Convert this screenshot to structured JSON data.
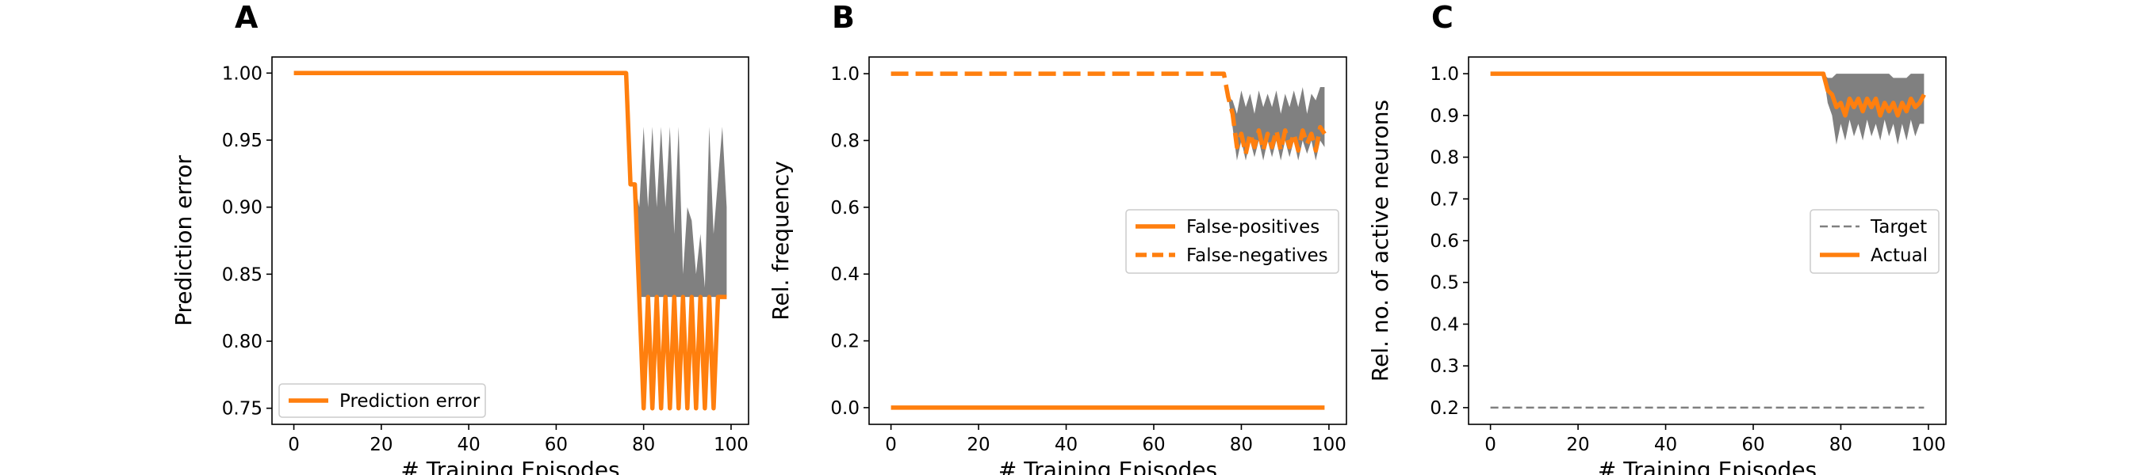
{
  "figure": {
    "panels": [
      "A",
      "B",
      "C"
    ]
  },
  "colors": {
    "series": "#ff7f0e",
    "band": "#808080",
    "target": "#808080",
    "axis": "#000000"
  },
  "chart_data": [
    {
      "panel": "A",
      "type": "line",
      "xlabel": "# Training Episodes",
      "ylabel": "Prediction error",
      "xlim": [
        -5,
        104
      ],
      "ylim": [
        0.738,
        1.012
      ],
      "xticks": [
        0,
        20,
        40,
        60,
        80,
        100
      ],
      "yticks": [
        0.75,
        0.8,
        0.85,
        0.9,
        0.95,
        1.0
      ],
      "ytick_labels": [
        "0.75",
        "0.80",
        "0.85",
        "0.90",
        "0.95",
        "1.00"
      ],
      "legend": {
        "position": "lower-left"
      },
      "series": [
        {
          "name": "Prediction error",
          "style": "solid",
          "x": [
            0,
            76,
            77,
            78,
            79,
            80,
            81,
            82,
            83,
            84,
            85,
            86,
            87,
            88,
            89,
            90,
            91,
            92,
            93,
            94,
            95,
            96,
            97,
            98,
            99
          ],
          "y": [
            1.0,
            1.0,
            0.917,
            0.917,
            0.833,
            0.75,
            0.833,
            0.75,
            0.833,
            0.75,
            0.833,
            0.75,
            0.833,
            0.75,
            0.833,
            0.75,
            0.833,
            0.75,
            0.833,
            0.75,
            0.833,
            0.75,
            0.833,
            0.833,
            0.833
          ],
          "band_upper": [
            1.0,
            1.0,
            0.917,
            0.917,
            0.9,
            0.96,
            0.9,
            0.96,
            0.9,
            0.96,
            0.9,
            0.96,
            0.88,
            0.96,
            0.85,
            0.9,
            0.89,
            0.85,
            0.88,
            0.84,
            0.96,
            0.88,
            0.92,
            0.96,
            0.9
          ],
          "band_lower": [
            1.0,
            1.0,
            0.917,
            0.917,
            0.833,
            0.833,
            0.833,
            0.833,
            0.833,
            0.833,
            0.833,
            0.833,
            0.833,
            0.833,
            0.833,
            0.833,
            0.833,
            0.833,
            0.833,
            0.833,
            0.833,
            0.833,
            0.833,
            0.833,
            0.833
          ]
        }
      ]
    },
    {
      "panel": "B",
      "type": "line",
      "xlabel": "# Training Episodes",
      "ylabel": "Rel. frequency",
      "xlim": [
        -5,
        104
      ],
      "ylim": [
        -0.05,
        1.05
      ],
      "xticks": [
        0,
        20,
        40,
        60,
        80,
        100
      ],
      "yticks": [
        0.0,
        0.2,
        0.4,
        0.6,
        0.8,
        1.0
      ],
      "ytick_labels": [
        "0.0",
        "0.2",
        "0.4",
        "0.6",
        "0.8",
        "1.0"
      ],
      "legend": {
        "position": "center-right"
      },
      "series": [
        {
          "name": "False-positives",
          "style": "solid",
          "x": [
            0,
            99
          ],
          "y": [
            0.0,
            0.0
          ]
        },
        {
          "name": "False-negatives",
          "style": "dashed",
          "x": [
            0,
            76,
            77,
            78,
            79,
            80,
            81,
            82,
            83,
            84,
            85,
            86,
            87,
            88,
            89,
            90,
            91,
            92,
            93,
            94,
            95,
            96,
            97,
            98,
            99
          ],
          "y": [
            1.0,
            1.0,
            0.93,
            0.88,
            0.78,
            0.82,
            0.76,
            0.82,
            0.78,
            0.83,
            0.77,
            0.82,
            0.78,
            0.83,
            0.77,
            0.83,
            0.78,
            0.82,
            0.77,
            0.83,
            0.79,
            0.82,
            0.77,
            0.84,
            0.82
          ],
          "band_upper": [
            1.0,
            1.0,
            0.93,
            0.92,
            0.88,
            0.95,
            0.9,
            0.94,
            0.88,
            0.95,
            0.9,
            0.94,
            0.9,
            0.95,
            0.88,
            0.94,
            0.9,
            0.95,
            0.9,
            0.96,
            0.88,
            0.94,
            0.92,
            0.96,
            0.96
          ],
          "band_lower": [
            1.0,
            1.0,
            0.93,
            0.84,
            0.74,
            0.8,
            0.74,
            0.8,
            0.75,
            0.8,
            0.74,
            0.8,
            0.75,
            0.8,
            0.74,
            0.8,
            0.75,
            0.8,
            0.74,
            0.8,
            0.76,
            0.8,
            0.74,
            0.8,
            0.78
          ]
        }
      ]
    },
    {
      "panel": "C",
      "type": "line",
      "xlabel": "# Training Episodes",
      "ylabel": "Rel. no. of active neurons",
      "xlim": [
        -5,
        104
      ],
      "ylim": [
        0.16,
        1.04
      ],
      "xticks": [
        0,
        20,
        40,
        60,
        80,
        100
      ],
      "yticks": [
        0.2,
        0.3,
        0.4,
        0.5,
        0.6,
        0.7,
        0.8,
        0.9,
        1.0
      ],
      "ytick_labels": [
        "0.2",
        "0.3",
        "0.4",
        "0.5",
        "0.6",
        "0.7",
        "0.8",
        "0.9",
        "1.0"
      ],
      "legend": {
        "position": "center-right"
      },
      "series": [
        {
          "name": "Target",
          "style": "dashed-thin",
          "x": [
            0,
            99
          ],
          "y": [
            0.2,
            0.2
          ]
        },
        {
          "name": "Actual",
          "style": "solid",
          "x": [
            0,
            76,
            77,
            78,
            79,
            80,
            81,
            82,
            83,
            84,
            85,
            86,
            87,
            88,
            89,
            90,
            91,
            92,
            93,
            94,
            95,
            96,
            97,
            98,
            99
          ],
          "y": [
            1.0,
            1.0,
            0.96,
            0.95,
            0.92,
            0.93,
            0.9,
            0.94,
            0.92,
            0.94,
            0.91,
            0.94,
            0.92,
            0.94,
            0.9,
            0.93,
            0.91,
            0.93,
            0.9,
            0.93,
            0.91,
            0.94,
            0.92,
            0.93,
            0.95
          ],
          "band_upper": [
            1.0,
            1.0,
            0.99,
            0.99,
            1.0,
            1.0,
            1.0,
            1.0,
            1.0,
            1.0,
            1.0,
            1.0,
            1.0,
            1.0,
            1.0,
            1.0,
            1.0,
            0.99,
            0.99,
            0.99,
            0.99,
            1.0,
            1.0,
            1.0,
            1.0
          ],
          "band_lower": [
            1.0,
            1.0,
            0.93,
            0.9,
            0.83,
            0.88,
            0.84,
            0.89,
            0.85,
            0.88,
            0.84,
            0.89,
            0.85,
            0.88,
            0.84,
            0.89,
            0.85,
            0.88,
            0.83,
            0.88,
            0.84,
            0.89,
            0.85,
            0.88,
            0.88
          ]
        }
      ]
    }
  ]
}
